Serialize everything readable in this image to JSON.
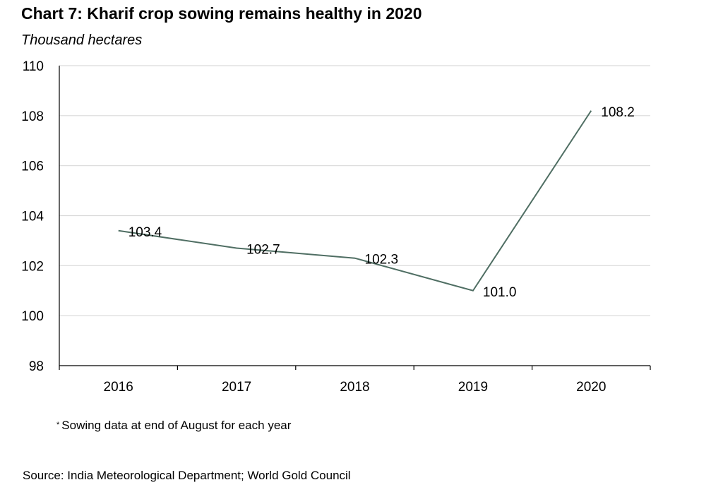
{
  "chart_data": {
    "type": "line",
    "title": "Chart 7: Kharif crop sowing remains healthy in 2020",
    "ylabel": "Thousand hectares",
    "xlabel": "",
    "categories": [
      "2016",
      "2017",
      "2018",
      "2019",
      "2020"
    ],
    "series": [
      {
        "name": "Kharif crop sowing",
        "values": [
          103.4,
          102.7,
          102.3,
          101.0,
          108.2
        ],
        "color": "#4f6e63"
      }
    ],
    "data_labels": [
      "103.4",
      "102.7",
      "102.3",
      "101.0",
      "108.2"
    ],
    "ylim": [
      98,
      110
    ],
    "yticks": [
      98,
      100,
      102,
      104,
      106,
      108,
      110
    ],
    "ytick_labels": [
      "98",
      "100",
      "102",
      "104",
      "106",
      "108",
      "110"
    ],
    "grid": true,
    "legend": "none",
    "footnote_marker": "*",
    "footnote": "Sowing data at end of August for each year",
    "source": "Source: India Meteorological Department; World Gold Council"
  }
}
